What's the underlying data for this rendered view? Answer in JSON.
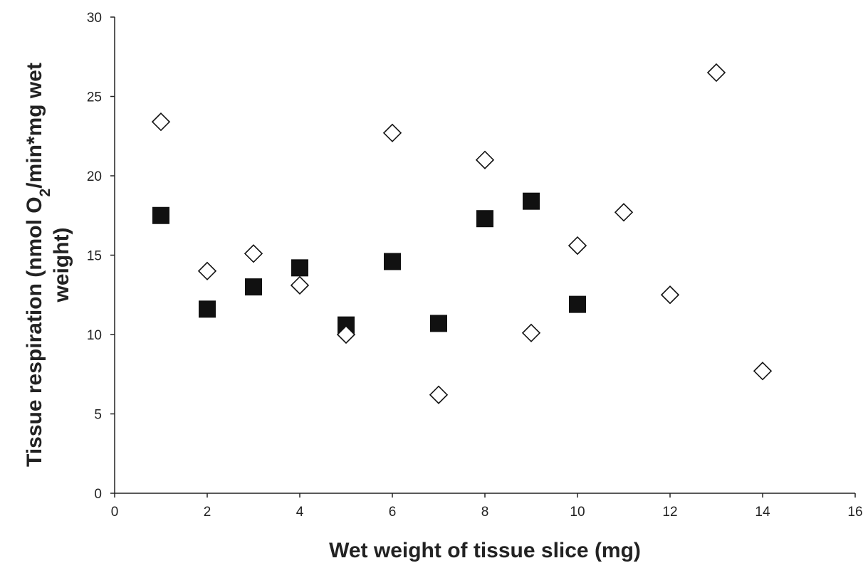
{
  "chart_data": {
    "type": "scatter",
    "title": "",
    "xlabel": "Wet weight of tissue slice (mg)",
    "ylabel_lines": [
      "Tissue respiration (nmol O",
      "2",
      "/min*mg wet",
      "weight)"
    ],
    "xlim": [
      0,
      16
    ],
    "ylim": [
      0,
      30
    ],
    "x_ticks": [
      "0",
      "2",
      "4",
      "6",
      "8",
      "10",
      "12",
      "14",
      "16"
    ],
    "y_ticks": [
      "0",
      "5",
      "10",
      "15",
      "20",
      "25",
      "30"
    ],
    "grid": false,
    "legend": "none",
    "series": [
      {
        "marker": "filled-square",
        "color": "#111111",
        "x": [
          1,
          2,
          3,
          4,
          5,
          6,
          7,
          8,
          9,
          10
        ],
        "y": [
          17.5,
          11.6,
          13.0,
          14.2,
          10.6,
          14.6,
          10.7,
          17.3,
          18.4,
          11.9
        ]
      },
      {
        "marker": "open-diamond",
        "color": "#111111",
        "x": [
          1,
          2,
          3,
          4,
          5,
          6,
          7,
          8,
          9,
          10,
          11,
          12,
          13,
          14
        ],
        "y": [
          23.4,
          14.0,
          15.1,
          13.1,
          10.0,
          22.7,
          6.2,
          21.0,
          10.1,
          15.6,
          17.7,
          12.5,
          26.5,
          7.7
        ]
      }
    ]
  }
}
